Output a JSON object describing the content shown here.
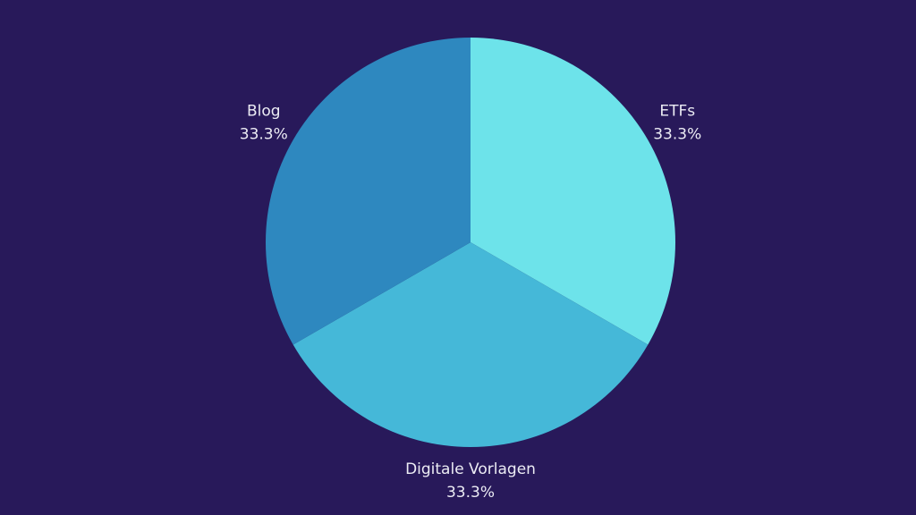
{
  "chart_data": {
    "type": "pie",
    "categories": [
      "ETFs",
      "Digitale Vorlagen",
      "Blog"
    ],
    "values": [
      33.3,
      33.3,
      33.3
    ],
    "value_labels": [
      "33.3%",
      "33.3%",
      "33.3%"
    ],
    "colors": [
      "#6de3ea",
      "#45b8d8",
      "#2e88bf"
    ]
  }
}
